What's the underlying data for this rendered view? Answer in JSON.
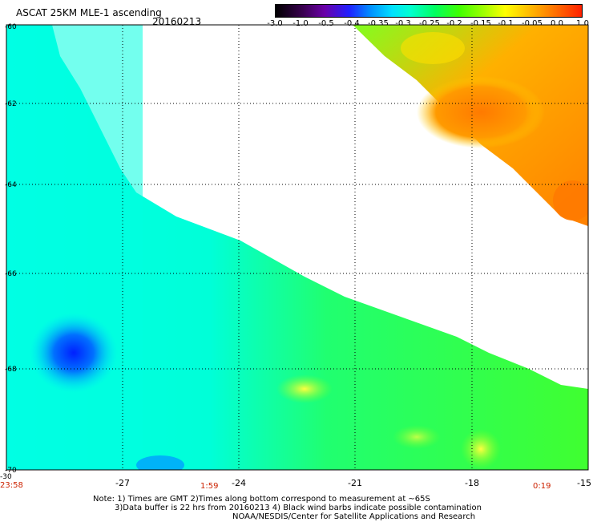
{
  "header": {
    "title": "ASCAT 25KM MLE-1 ascending",
    "date": "20160213"
  },
  "colorbar": {
    "ticks": [
      "-3.0",
      "-1.0",
      "-0.5",
      "-0.4",
      "-0.35",
      "-0.3",
      "-0.25",
      "-0.2",
      "-0.15",
      "-0.1",
      "-0.05",
      "0.0",
      "1.0"
    ]
  },
  "map": {
    "lat_labels": [
      "-60",
      "-62",
      "-64",
      "-66",
      "-68",
      "-70"
    ],
    "lon_labels": [
      "-30",
      "-27",
      "-24",
      "-21",
      "-18",
      "-15"
    ],
    "time_labels": [
      "23:58",
      "1:59",
      "0:19"
    ]
  },
  "notes": {
    "line1": "Note: 1) Times are GMT 2)Times along bottom correspond to measurement at ~65S",
    "line2": "3)Data buffer is 22 hrs from 20160213 4) Black wind barbs indicate possible contamination",
    "line3": "NOAA/NESDIS/Center for Satellite Applications and Research"
  },
  "colors": {
    "swath_low": "#00ffff",
    "swath_mid": "#20ff40",
    "swath_high": "#ff8c00",
    "accent_time": "#cc2200"
  }
}
